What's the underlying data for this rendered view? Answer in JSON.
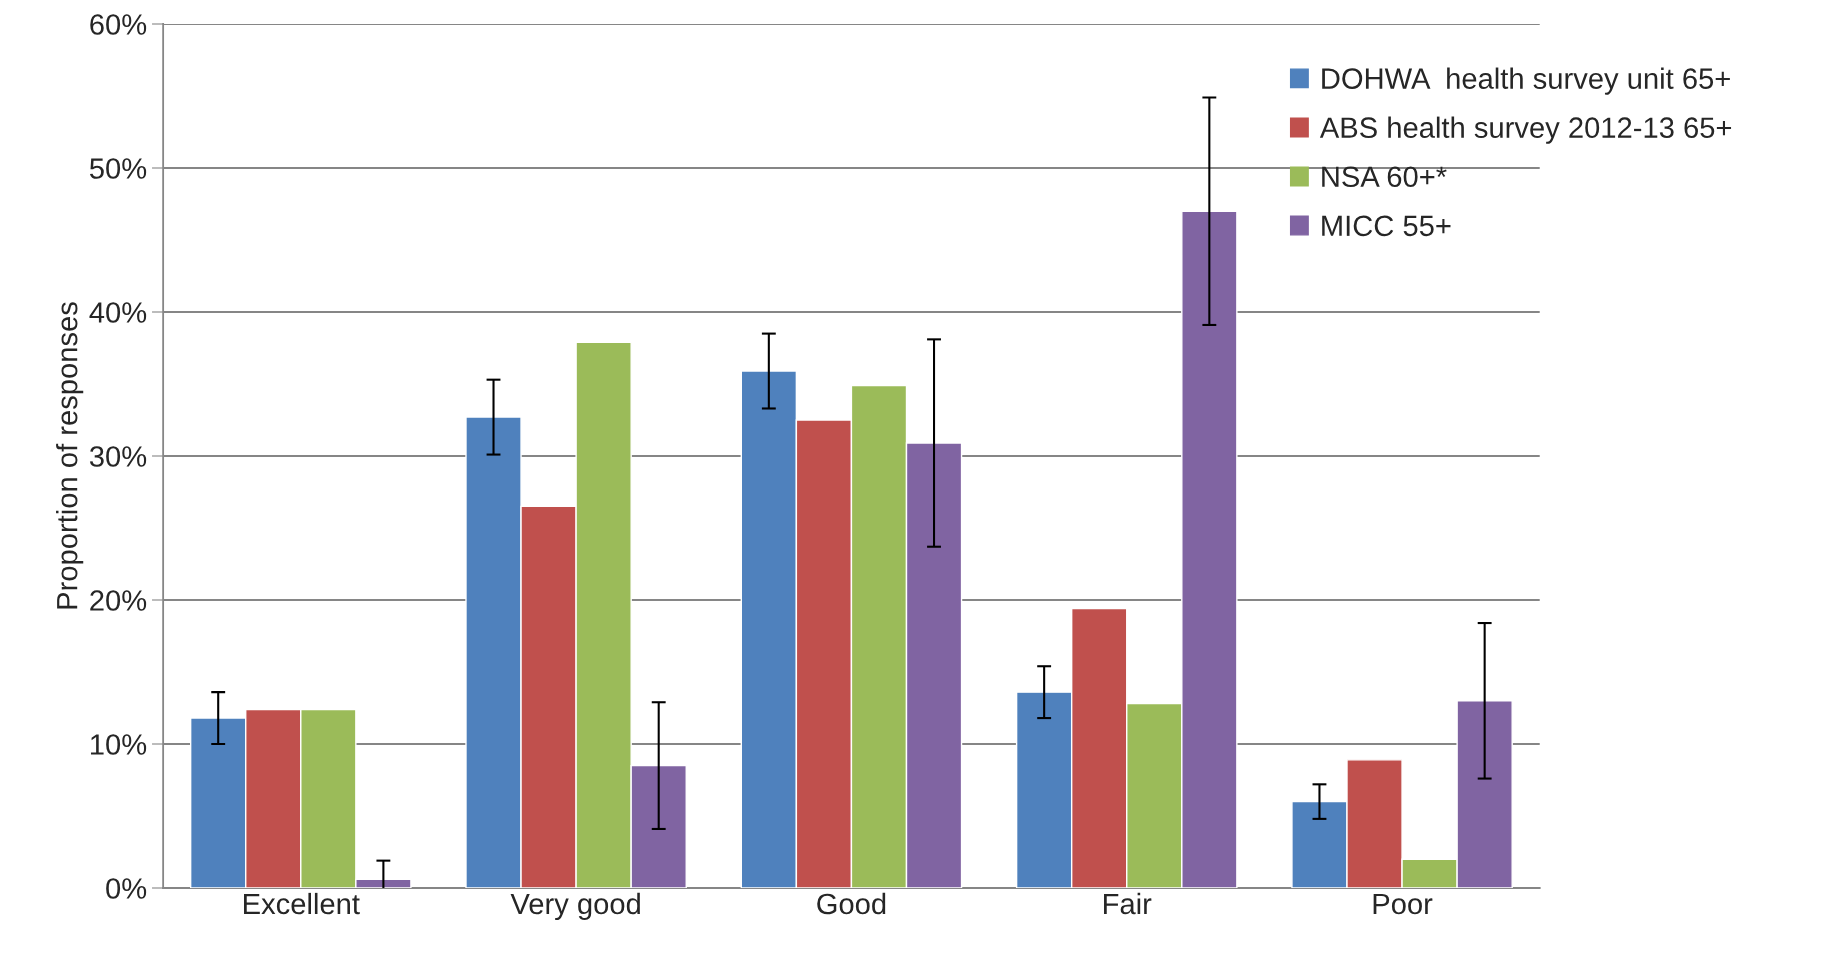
{
  "chart_data": {
    "type": "bar",
    "ylabel": "Proportion of responses",
    "categories": [
      "Excellent",
      "Very good",
      "Good",
      "Fair",
      "Poor"
    ],
    "series": [
      {
        "name": "DOHWA  health survey unit 65+",
        "color": "#4f81bd",
        "values": [
          11.8,
          32.7,
          35.9,
          13.6,
          6.0
        ],
        "errors": [
          1.8,
          2.6,
          2.6,
          1.8,
          1.2
        ]
      },
      {
        "name": "ABS health survey 2012-13 65+",
        "color": "#c0504d",
        "values": [
          12.4,
          26.5,
          32.5,
          19.4,
          8.9
        ]
      },
      {
        "name": "NSA 60+*",
        "color": "#9bbb59",
        "values": [
          12.4,
          37.9,
          34.9,
          12.8,
          2.0
        ]
      },
      {
        "name": "MICC 55+",
        "color": "#8064a2",
        "values": [
          0.6,
          8.5,
          30.9,
          47.0,
          13.0
        ],
        "errors": [
          1.3,
          4.4,
          7.2,
          7.9,
          5.4
        ]
      }
    ],
    "ylim": [
      0,
      60
    ],
    "yticks": [
      {
        "value": 0,
        "label": "0%"
      },
      {
        "value": 10,
        "label": "10%"
      },
      {
        "value": 20,
        "label": "20%"
      },
      {
        "value": 30,
        "label": "30%"
      },
      {
        "value": 40,
        "label": "40%"
      },
      {
        "value": 50,
        "label": "50%"
      },
      {
        "value": 60,
        "label": "60%"
      }
    ],
    "grid": "y",
    "legend": "top right"
  }
}
